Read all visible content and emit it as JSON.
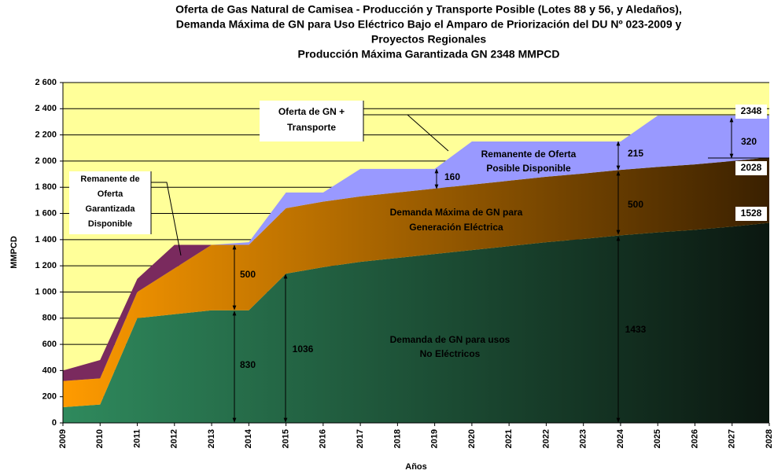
{
  "chart_data": {
    "type": "stacked_area",
    "title": [
      "Oferta de Gas Natural de Camisea - Producción y Transporte Posible (Lotes 88 y 56, y Aledaños),",
      "Demanda Máxima de GN para Uso Eléctrico Bajo el Amparo de Priorización del DU Nº 023-2009 y",
      "Proyectos Regionales",
      "Producción Máxima Garantizada GN 2348 MMPCD"
    ],
    "xlabel": "Años",
    "ylabel": "MMPCD",
    "categories": [
      "2009",
      "2010",
      "2011",
      "2012",
      "2013",
      "2014",
      "2015",
      "2016",
      "2017",
      "2018",
      "2019",
      "2020",
      "2021",
      "2022",
      "2023",
      "2024",
      "2025",
      "2026",
      "2027",
      "2028"
    ],
    "series": [
      {
        "name": "Demanda de GN para usos No Eléctricos",
        "color": "#2f8a5d",
        "gradient_to": "#0b1710",
        "values": [
          120,
          140,
          800,
          830,
          860,
          860,
          1140,
          1190,
          1230,
          1260,
          1290,
          1320,
          1350,
          1380,
          1405,
          1433,
          1455,
          1475,
          1500,
          1528
        ]
      },
      {
        "name": "Demanda Máxima de GN para Generación Eléctrica",
        "color": "#ff9b00",
        "gradient_to": "#3a2000",
        "values": [
          200,
          200,
          200,
          350,
          500,
          500,
          500,
          500,
          500,
          500,
          500,
          500,
          500,
          500,
          500,
          500,
          500,
          500,
          500,
          500
        ]
      },
      {
        "name": "Remanente de Oferta Garantizada Disponible",
        "color": "#7a2a5e",
        "values": [
          80,
          140,
          100,
          180,
          0,
          0,
          0,
          0,
          0,
          0,
          0,
          0,
          0,
          0,
          0,
          0,
          0,
          0,
          0,
          0
        ]
      },
      {
        "name": "Remanente de Oferta Posible Disponible",
        "color": "#9999ff",
        "values": [
          0,
          0,
          0,
          0,
          0,
          20,
          120,
          70,
          210,
          180,
          150,
          330,
          300,
          270,
          245,
          217,
          393,
          373,
          348,
          320
        ]
      }
    ],
    "ylim": [
      0,
      2600
    ],
    "yticks": [
      0,
      200,
      400,
      600,
      800,
      {
        "value": 1000,
        "label": "1 000"
      },
      {
        "value": 1200,
        "label": "1 200"
      },
      {
        "value": 1400,
        "label": "1 400"
      },
      {
        "value": 1600,
        "label": "1 600"
      },
      {
        "value": 1800,
        "label": "1 800"
      },
      {
        "value": 2000,
        "label": "2 000"
      },
      {
        "value": 2200,
        "label": "2 200"
      },
      {
        "value": 2400,
        "label": "2 400"
      },
      {
        "value": 2600,
        "label": "2 600"
      }
    ],
    "grid": true,
    "background": "#ffff99",
    "annotations": [
      [
        "Oferta de GN +",
        "Transporte"
      ],
      [
        "Remanente de",
        "Oferta",
        "Garantizada",
        "Disponible"
      ],
      [
        "Remanente de Oferta",
        "Posible Disponible"
      ],
      [
        "Demanda Máxima de GN para",
        "Generación Eléctrica"
      ],
      [
        "Demanda de GN para usos",
        "No Eléctricos"
      ],
      [
        "500"
      ],
      [
        "830"
      ],
      [
        "1036"
      ],
      [
        "160"
      ],
      [
        "215"
      ],
      [
        "500"
      ],
      [
        "1433"
      ],
      [
        "320"
      ]
    ],
    "end_labels": [
      "2348",
      "2028",
      "1528"
    ]
  }
}
